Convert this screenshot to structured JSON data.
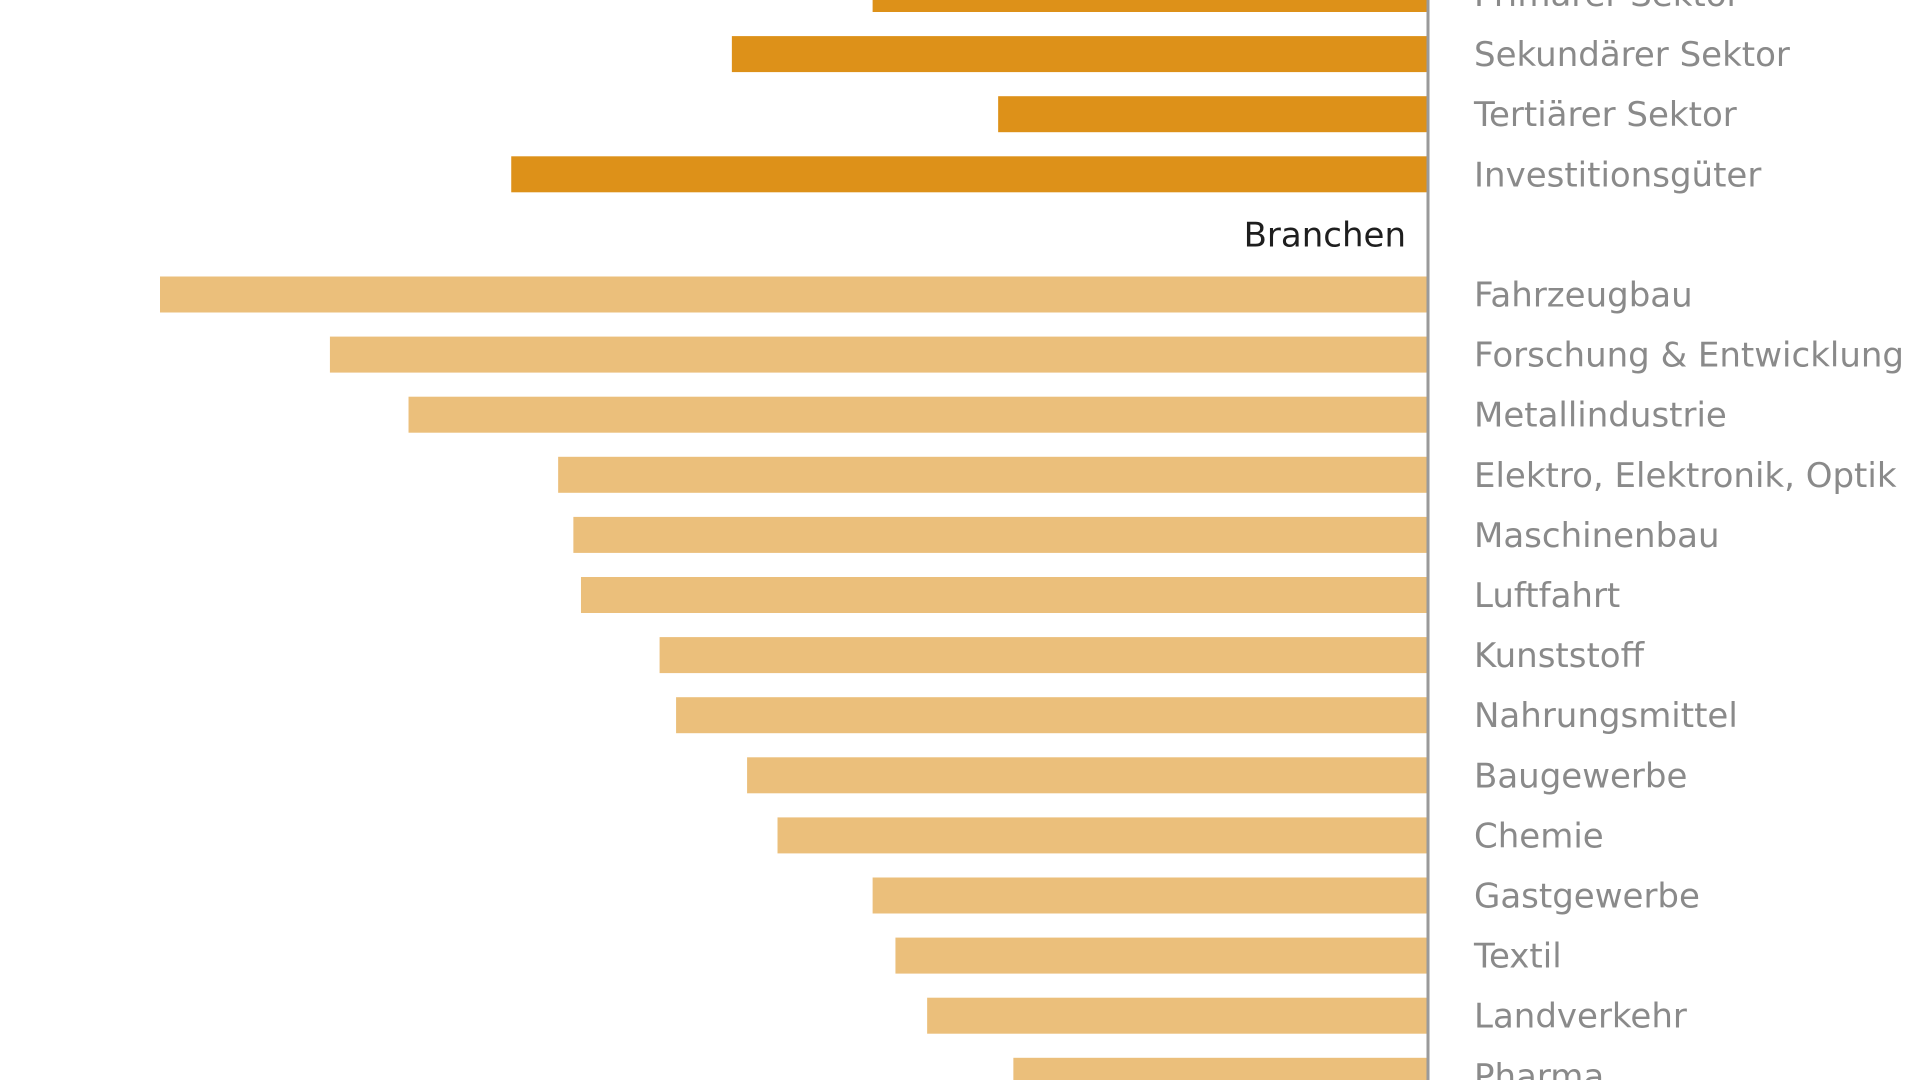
{
  "chart_data": {
    "type": "bar",
    "orientation": "horizontal",
    "direction": "leftward",
    "title": "",
    "xlabel": "",
    "ylabel": "",
    "grid": false,
    "xlim": [
      0,
      100
    ],
    "colors": {
      "sector": "#dd9119",
      "branch": "#ebbf7b",
      "axis": "#9a9a9a",
      "label": "#8a8a8a",
      "section_label": "#1e1e1e"
    },
    "groups": [
      {
        "name": "",
        "color_key": "sector",
        "categories": [
          "Primärer Sektor",
          "Sekundärer Sektor",
          "Tertiärer Sektor",
          "Investitionsgüter"
        ],
        "values": [
          43.8,
          54.9,
          33.9,
          72.3
        ]
      },
      {
        "name": "Branchen",
        "color_key": "branch",
        "categories": [
          "Fahrzeugbau",
          "Forschung & Entwicklung",
          "Metallindustrie",
          "Elektro, Elektronik, Optik",
          "Maschinenbau",
          "Luftfahrt",
          "Kunststoff",
          "Nahrungsmittel",
          "Baugewerbe",
          "Chemie",
          "Gastgewerbe",
          "Textil",
          "Landverkehr",
          "Pharma"
        ],
        "values": [
          100,
          86.6,
          80.4,
          68.6,
          67.4,
          66.8,
          60.6,
          59.3,
          53.7,
          51.3,
          43.8,
          42.0,
          39.5,
          32.7
        ]
      }
    ]
  }
}
